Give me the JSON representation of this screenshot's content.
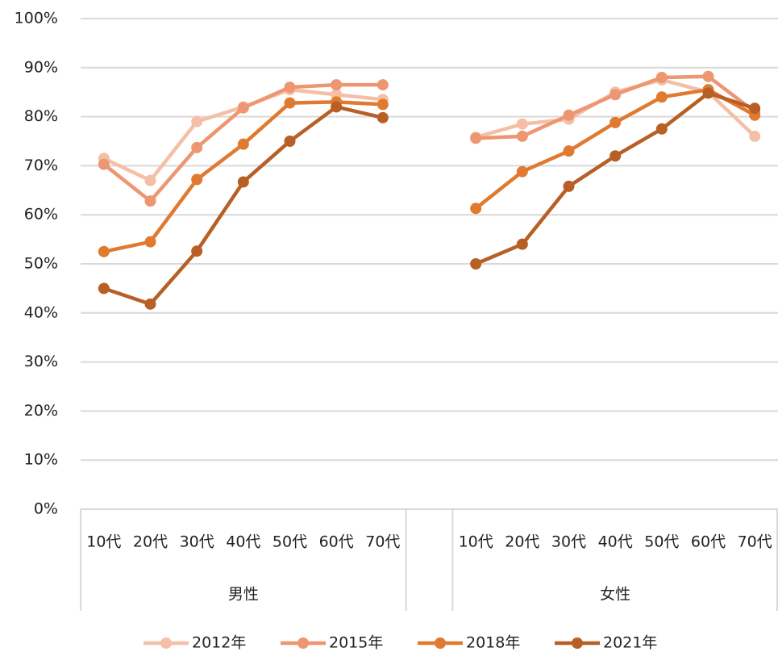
{
  "chart_data": {
    "type": "line",
    "categories": [
      "10代",
      "20代",
      "30代",
      "40代",
      "50代",
      "60代",
      "70代",
      null,
      "10代",
      "20代",
      "30代",
      "40代",
      "50代",
      "60代",
      "70代"
    ],
    "groups": [
      "男性",
      "女性"
    ],
    "series": [
      {
        "name": "2012年",
        "color": "#f4bfa6",
        "values": [
          71.5,
          67,
          79,
          82,
          85.5,
          84.5,
          83.5,
          null,
          75.8,
          78.5,
          79.5,
          85,
          87.5,
          85,
          76
        ]
      },
      {
        "name": "2015年",
        "color": "#ed9671",
        "values": [
          70.3,
          62.8,
          73.7,
          81.8,
          86,
          86.5,
          86.5,
          null,
          75.6,
          76,
          80.3,
          84.5,
          88,
          88.2,
          81
        ]
      },
      {
        "name": "2018年",
        "color": "#e07a30",
        "values": [
          52.5,
          54.5,
          67.2,
          74.4,
          82.8,
          83,
          82.5,
          null,
          61.3,
          68.8,
          73,
          78.8,
          84,
          85.5,
          80.3
        ]
      },
      {
        "name": "2021年",
        "color": "#b85f25",
        "values": [
          45,
          41.8,
          52.6,
          66.7,
          75,
          82,
          79.8,
          null,
          50,
          54,
          65.8,
          72,
          77.5,
          84.8,
          81.7
        ]
      }
    ],
    "ylim": [
      0,
      100
    ],
    "yticks": [
      {
        "value": 0,
        "label": "0%"
      },
      {
        "value": 10,
        "label": "10%"
      },
      {
        "value": 20,
        "label": "20%"
      },
      {
        "value": 30,
        "label": "30%"
      },
      {
        "value": 40,
        "label": "40%"
      },
      {
        "value": 50,
        "label": "50%"
      },
      {
        "value": 60,
        "label": "60%"
      },
      {
        "value": 70,
        "label": "70%"
      },
      {
        "value": 80,
        "label": "80%"
      },
      {
        "value": 90,
        "label": "90%"
      },
      {
        "value": 100,
        "label": "100%"
      }
    ],
    "grid": true,
    "legend": "bottom"
  }
}
